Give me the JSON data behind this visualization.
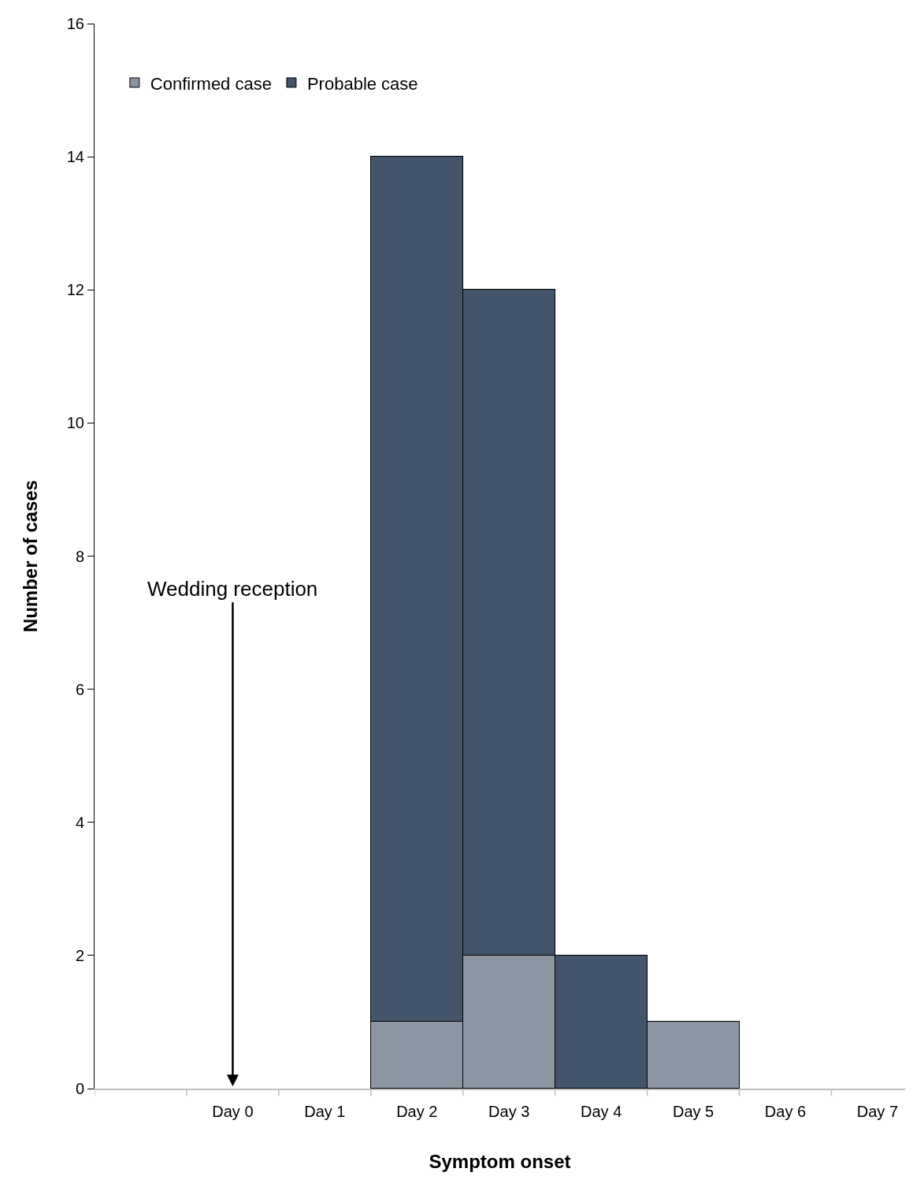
{
  "chart_data": {
    "type": "bar",
    "stacked": true,
    "xlabel": "Symptom onset",
    "ylabel": "Number of cases",
    "categories": [
      null,
      "Day 0",
      "Day 1",
      "Day 2",
      "Day 3",
      "Day 4",
      "Day 5",
      "Day 6",
      "Day 7"
    ],
    "series": [
      {
        "name": "Confirmed case",
        "color": "#8c95a2",
        "values": [
          null,
          null,
          null,
          1,
          2,
          null,
          1,
          null,
          null
        ]
      },
      {
        "name": "Probable case",
        "color": "#44546a",
        "values": [
          null,
          null,
          null,
          13,
          10,
          2,
          null,
          null,
          null
        ]
      }
    ],
    "ylim": [
      0,
      16
    ],
    "yticks": [
      0,
      2,
      4,
      6,
      8,
      10,
      12,
      14,
      16
    ],
    "legend": "top left",
    "annotations": [
      "Wedding reception"
    ]
  }
}
